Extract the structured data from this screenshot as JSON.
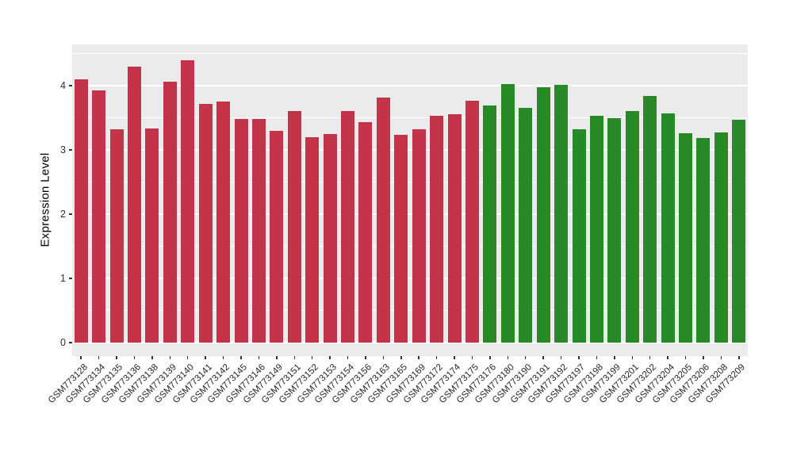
{
  "chart_data": {
    "type": "bar",
    "title": "",
    "xlabel": "",
    "ylabel": "Expression Level",
    "ylim": [
      0,
      4.62
    ],
    "yticks": [
      0,
      1,
      2,
      3,
      4
    ],
    "minor_gridline_step": 0.5,
    "grid": true,
    "legend_position": "none",
    "panel_background": "#EBEBEB",
    "gridline_color": "#FFFFFF",
    "tick_mark_color": "#333333",
    "axis_text_color": "#262626",
    "group_colors": {
      "red": "#C3344B",
      "green": "#278A27"
    },
    "categories": [
      "GSM773128",
      "GSM773134",
      "GSM773135",
      "GSM773136",
      "GSM773138",
      "GSM773139",
      "GSM773140",
      "GSM773141",
      "GSM773142",
      "GSM773145",
      "GSM773146",
      "GSM773149",
      "GSM773151",
      "GSM773152",
      "GSM773153",
      "GSM773154",
      "GSM773156",
      "GSM773163",
      "GSM773165",
      "GSM773169",
      "GSM773172",
      "GSM773174",
      "GSM773175",
      "GSM773176",
      "GSM773180",
      "GSM773190",
      "GSM773191",
      "GSM773192",
      "GSM773197",
      "GSM773198",
      "GSM773199",
      "GSM773201",
      "GSM773202",
      "GSM773204",
      "GSM773205",
      "GSM773206",
      "GSM773208",
      "GSM773209"
    ],
    "values": [
      4.1,
      3.93,
      3.32,
      4.3,
      3.33,
      4.06,
      4.4,
      3.72,
      3.75,
      3.48,
      3.48,
      3.3,
      3.6,
      3.2,
      3.25,
      3.6,
      3.43,
      3.82,
      3.23,
      3.32,
      3.53,
      3.55,
      3.76,
      3.69,
      4.03,
      3.65,
      3.97,
      4.01,
      3.32,
      3.53,
      3.49,
      3.6,
      3.84,
      3.57,
      3.26,
      3.18,
      3.27,
      3.47
    ],
    "groups": [
      "red",
      "red",
      "red",
      "red",
      "red",
      "red",
      "red",
      "red",
      "red",
      "red",
      "red",
      "red",
      "red",
      "red",
      "red",
      "red",
      "red",
      "red",
      "red",
      "red",
      "red",
      "red",
      "red",
      "green",
      "green",
      "green",
      "green",
      "green",
      "green",
      "green",
      "green",
      "green",
      "green",
      "green",
      "green",
      "green",
      "green",
      "green"
    ]
  }
}
